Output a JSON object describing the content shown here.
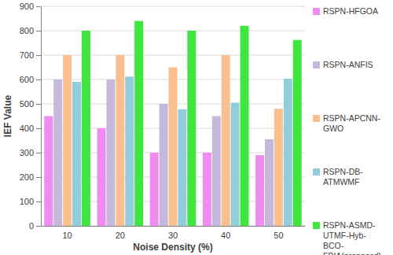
{
  "chart_data": {
    "type": "bar",
    "x_label": "Noise Density (%)",
    "y_label": "IEF Value",
    "categories": [
      "10",
      "20",
      "30",
      "40",
      "50"
    ],
    "series": [
      {
        "name": "RSPN-HFGOA",
        "color": "#f08cf0",
        "values": [
          450,
          400,
          300,
          300,
          290
        ]
      },
      {
        "name": "RSPN-ANFIS",
        "color": "#c4b8dc",
        "values": [
          600,
          600,
          500,
          450,
          355
        ]
      },
      {
        "name": "RSPN-APCNN-GWO",
        "color": "#fbbf8f",
        "values": [
          700,
          700,
          650,
          700,
          480
        ]
      },
      {
        "name": "RSPN-DB-ATMWMF",
        "color": "#92cddc",
        "values": [
          590,
          612,
          478,
          505,
          603
        ]
      },
      {
        "name": "RSPN-ASMD-UTMF-Hyb-BCO-FBIA(proposed)",
        "color": "#3ee63e",
        "values": [
          800,
          840,
          800,
          820,
          762
        ]
      }
    ],
    "ylim": [
      0,
      900
    ],
    "yticks": [
      0,
      100,
      200,
      300,
      400,
      500,
      600,
      700,
      800,
      900
    ],
    "grid": true,
    "legend": "right"
  }
}
